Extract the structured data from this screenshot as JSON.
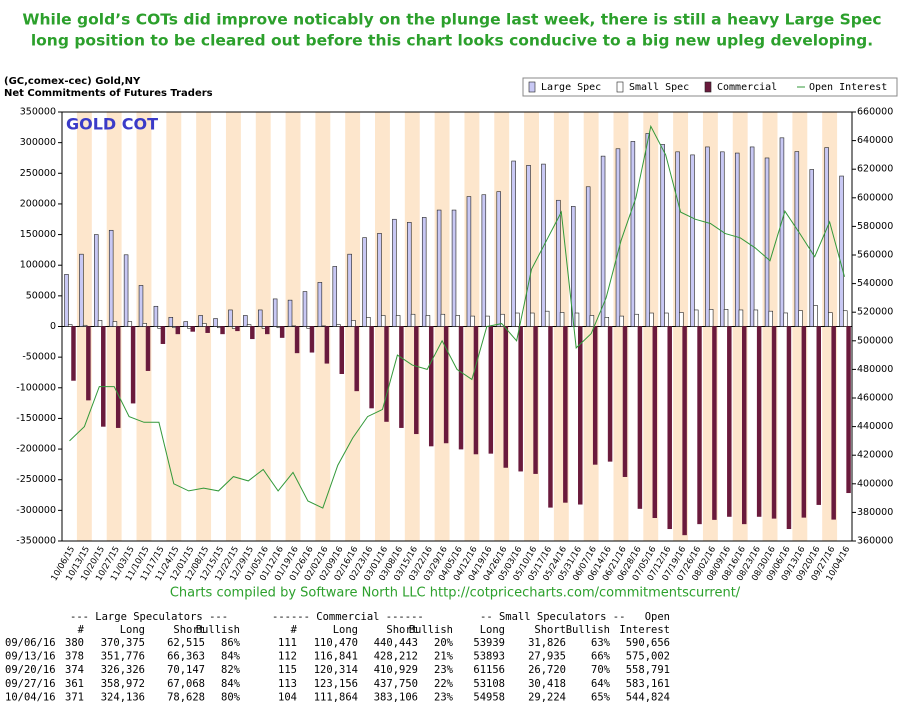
{
  "chart_data": {
    "type": "bar",
    "title": "While gold’s COTs did improve noticably on the plunge last week, there is still a heavy Large Spec",
    "title2": "long position to be cleared out before this chart looks conducive to a big new upleg developing.",
    "subtitle": "(GC,comex-cec) Gold,NY",
    "subtitle2": "Net Commitments of Futures Traders",
    "annotation": "GOLD COT",
    "credit": "Charts compiled by Software North LLC  http://cotpricecharts.com/commitmentscurrent/",
    "categories": [
      "10/06/15",
      "10/13/15",
      "10/20/15",
      "10/27/15",
      "11/03/15",
      "11/10/15",
      "11/17/15",
      "11/24/15",
      "12/01/15",
      "12/08/15",
      "12/15/15",
      "12/22/15",
      "12/29/15",
      "01/05/16",
      "01/12/16",
      "01/19/16",
      "01/26/16",
      "02/02/16",
      "02/09/16",
      "02/16/16",
      "02/23/16",
      "03/01/16",
      "03/08/16",
      "03/15/16",
      "03/22/16",
      "03/29/16",
      "04/05/16",
      "04/12/16",
      "04/19/16",
      "04/26/16",
      "05/03/16",
      "05/10/16",
      "05/17/16",
      "05/24/16",
      "05/31/16",
      "06/07/16",
      "06/14/16",
      "06/21/16",
      "06/28/16",
      "07/05/16",
      "07/12/16",
      "07/19/16",
      "07/26/16",
      "08/02/16",
      "08/09/16",
      "08/16/16",
      "08/23/16",
      "08/30/16",
      "09/06/16",
      "09/13/16",
      "09/20/16",
      "09/27/16",
      "10/04/16"
    ],
    "series": [
      {
        "name": "Large Spec",
        "color": "#c8c8f4",
        "values": [
          85000,
          118000,
          150000,
          157000,
          117000,
          67000,
          33000,
          15000,
          8000,
          18000,
          13000,
          27000,
          18000,
          27000,
          45000,
          43000,
          57000,
          72000,
          98000,
          118000,
          145000,
          152000,
          175000,
          170000,
          178000,
          190000,
          190000,
          212000,
          215000,
          220000,
          270000,
          263000,
          265000,
          206000,
          196000,
          228000,
          278000,
          290000,
          302000,
          315000,
          297000,
          285000,
          280000,
          293000,
          285000,
          283000,
          293000,
          275000,
          307860,
          285413,
          256179,
          291904,
          245508
        ]
      },
      {
        "name": "Small Spec",
        "color": "#ffffff",
        "values": [
          3000,
          2000,
          10000,
          8000,
          8000,
          5000,
          -3000,
          -2000,
          -3000,
          5000,
          -2000,
          -3000,
          3000,
          -3000,
          -2000,
          1000,
          -3000,
          1000,
          3000,
          10000,
          15000,
          18000,
          18000,
          20000,
          18000,
          20000,
          18000,
          17000,
          17000,
          20000,
          22000,
          22000,
          25000,
          23000,
          22000,
          18000,
          15000,
          17000,
          20000,
          22000,
          22000,
          23000,
          27000,
          28000,
          28000,
          27000,
          27000,
          25000,
          22113,
          25958,
          34436,
          22690,
          25734
        ]
      },
      {
        "name": "Commercial",
        "color": "#6a1a3c",
        "values": [
          -88000,
          -120000,
          -163000,
          -165000,
          -125000,
          -72000,
          -28000,
          -12000,
          -8000,
          -10000,
          -12000,
          -7000,
          -20000,
          -12000,
          -18000,
          -43000,
          -42000,
          -60000,
          -77000,
          -105000,
          -133000,
          -155000,
          -165000,
          -175000,
          -195000,
          -190000,
          -200000,
          -208000,
          -207000,
          -230000,
          -236000,
          -240000,
          -295000,
          -287000,
          -290000,
          -225000,
          -220000,
          -245000,
          -297000,
          -312000,
          -330000,
          -340000,
          -322000,
          -315000,
          -310000,
          -322000,
          -310000,
          -313000,
          -329973,
          -311371,
          -290615,
          -314594,
          -271242
        ]
      },
      {
        "name": "Open Interest",
        "color": "#33993a",
        "axis": "y2",
        "values": [
          430000,
          440000,
          468000,
          468000,
          447000,
          443000,
          443000,
          400000,
          395000,
          397000,
          395000,
          405000,
          402000,
          410000,
          395000,
          408000,
          388000,
          383000,
          413000,
          432000,
          447000,
          452000,
          490000,
          483000,
          480000,
          500000,
          480000,
          473000,
          510000,
          512000,
          500000,
          550000,
          570000,
          590000,
          495000,
          505000,
          530000,
          570000,
          600000,
          650000,
          630000,
          590000,
          585000,
          582000,
          575000,
          572000,
          565000,
          556000,
          590656,
          575002,
          558791,
          583161,
          544824
        ]
      }
    ],
    "ylim": [
      -350000,
      350000
    ],
    "yticks": [
      -350000,
      -300000,
      -250000,
      -200000,
      -150000,
      -100000,
      -50000,
      0,
      50000,
      100000,
      150000,
      200000,
      250000,
      300000,
      350000
    ],
    "y2lim": [
      360000,
      660000
    ],
    "y2ticks": [
      360000,
      380000,
      400000,
      420000,
      440000,
      460000,
      480000,
      500000,
      520000,
      540000,
      560000,
      580000,
      600000,
      620000,
      640000,
      660000
    ],
    "grid": false,
    "legend": "top-right"
  },
  "table": {
    "group_headers": [
      "--- Large Speculators ---",
      "------ Commercial ------",
      "-- Small Speculators --",
      "Open"
    ],
    "headers": [
      "#",
      "Long",
      "Short",
      "Bullish",
      "#",
      "Long",
      "Short",
      "Bullish",
      "Long",
      "Short",
      "Bullish",
      "Interest"
    ],
    "rows": [
      [
        "09/06/16",
        "380",
        "370,375",
        "62,515",
        "86%",
        "111",
        "110,470",
        "440,443",
        "20%",
        "53939",
        "31,826",
        "63%",
        "590,656"
      ],
      [
        "09/13/16",
        "378",
        "351,776",
        "66,363",
        "84%",
        "112",
        "116,841",
        "428,212",
        "21%",
        "53893",
        "27,935",
        "66%",
        "575,002"
      ],
      [
        "09/20/16",
        "374",
        "326,326",
        "70,147",
        "82%",
        "115",
        "120,314",
        "410,929",
        "23%",
        "61156",
        "26,720",
        "70%",
        "558,791"
      ],
      [
        "09/27/16",
        "361",
        "358,972",
        "67,068",
        "84%",
        "113",
        "123,156",
        "437,750",
        "22%",
        "53108",
        "30,418",
        "64%",
        "583,161"
      ],
      [
        "10/04/16",
        "371",
        "324,136",
        "78,628",
        "80%",
        "104",
        "111,864",
        "383,106",
        "23%",
        "54958",
        "29,224",
        "65%",
        "544,824"
      ]
    ]
  }
}
